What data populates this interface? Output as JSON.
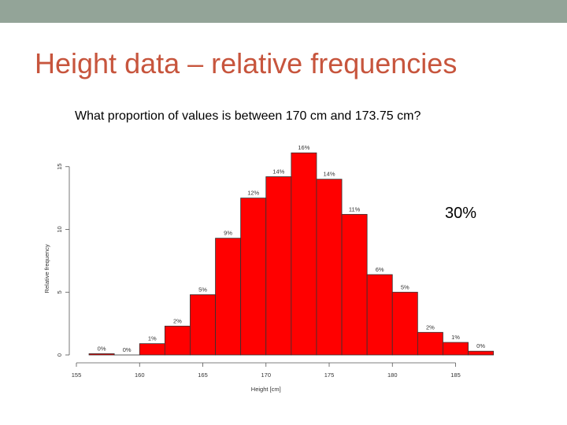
{
  "slide": {
    "title": "Height data – relative frequencies",
    "question": "What proportion of values is between 170 cm and 173.75 cm?",
    "answer": "30%"
  },
  "colors": {
    "top_bar": "#93a498",
    "title": "#c7553d",
    "bar_fill": "#ff0000"
  },
  "chart_data": {
    "type": "bar",
    "xlabel": "Height [cm]",
    "ylabel": "Relative frequency",
    "xlim": [
      155,
      189
    ],
    "ylim": [
      0,
      15
    ],
    "x_ticks": [
      155,
      160,
      165,
      170,
      175,
      180,
      185
    ],
    "y_ticks": [
      0,
      5,
      10,
      15
    ],
    "bins": [
      {
        "start": 156,
        "end": 158,
        "value": 0.1,
        "label": "0%"
      },
      {
        "start": 158,
        "end": 160,
        "value": 0,
        "label": "0%"
      },
      {
        "start": 160,
        "end": 162,
        "value": 0.9,
        "label": "1%"
      },
      {
        "start": 162,
        "end": 164,
        "value": 2.3,
        "label": "2%"
      },
      {
        "start": 164,
        "end": 166,
        "value": 4.8,
        "label": "5%"
      },
      {
        "start": 166,
        "end": 168,
        "value": 9.3,
        "label": "9%"
      },
      {
        "start": 168,
        "end": 170,
        "value": 12.5,
        "label": "12%"
      },
      {
        "start": 170,
        "end": 172,
        "value": 14.2,
        "label": "14%"
      },
      {
        "start": 172,
        "end": 174,
        "value": 16.1,
        "label": "16%"
      },
      {
        "start": 174,
        "end": 176,
        "value": 14.0,
        "label": "14%"
      },
      {
        "start": 176,
        "end": 178,
        "value": 11.2,
        "label": "11%"
      },
      {
        "start": 178,
        "end": 180,
        "value": 6.4,
        "label": "6%"
      },
      {
        "start": 180,
        "end": 182,
        "value": 5.0,
        "label": "5%"
      },
      {
        "start": 182,
        "end": 184,
        "value": 1.8,
        "label": "2%"
      },
      {
        "start": 184,
        "end": 186,
        "value": 1.0,
        "label": "1%"
      },
      {
        "start": 186,
        "end": 188,
        "value": 0.3,
        "label": "0%"
      }
    ]
  }
}
